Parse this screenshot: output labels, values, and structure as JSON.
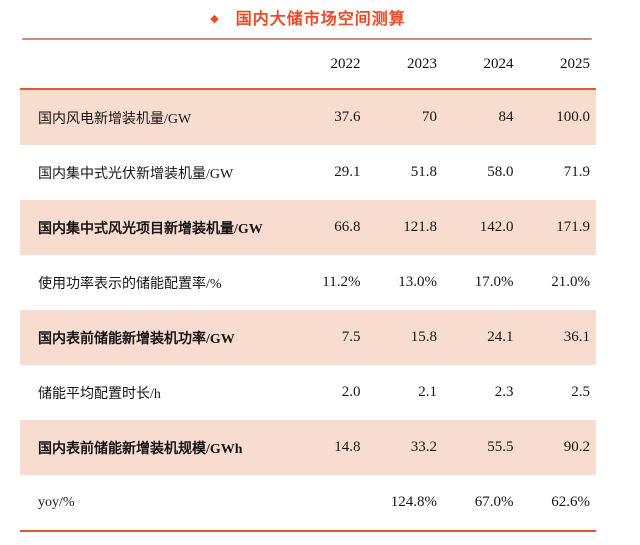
{
  "title": {
    "bullet_icon": "◆",
    "text": "国内大储市场空间测算"
  },
  "chart_data": {
    "type": "table",
    "title": "国内大储市场空间测算",
    "columns": [
      "",
      "2022",
      "2023",
      "2024",
      "2025"
    ],
    "rows": [
      {
        "label": "国内风电新增装机量/GW",
        "values": [
          "37.6",
          "70",
          "84",
          "100.0"
        ],
        "highlight": true,
        "bold": false
      },
      {
        "label": "国内集中式光伏新增装机量/GW",
        "values": [
          "29.1",
          "51.8",
          "58.0",
          "71.9"
        ],
        "highlight": false,
        "bold": false
      },
      {
        "label": "国内集中式风光项目新增装机量/GW",
        "values": [
          "66.8",
          "121.8",
          "142.0",
          "171.9"
        ],
        "highlight": true,
        "bold": true
      },
      {
        "label": "使用功率表示的储能配置率/%",
        "values": [
          "11.2%",
          "13.0%",
          "17.0%",
          "21.0%"
        ],
        "highlight": false,
        "bold": false
      },
      {
        "label": "国内表前储能新增装机功率/GW",
        "values": [
          "7.5",
          "15.8",
          "24.1",
          "36.1"
        ],
        "highlight": true,
        "bold": true
      },
      {
        "label": "储能平均配置时长/h",
        "values": [
          "2.0",
          "2.1",
          "2.3",
          "2.5"
        ],
        "highlight": false,
        "bold": false
      },
      {
        "label": "国内表前储能新增装机规模/GWh",
        "values": [
          "14.8",
          "33.2",
          "55.5",
          "90.2"
        ],
        "highlight": true,
        "bold": true
      },
      {
        "label": "yoy/%",
        "values": [
          "",
          "124.8%",
          "67.0%",
          "62.6%"
        ],
        "highlight": false,
        "bold": false
      }
    ]
  },
  "colors": {
    "title_red": "#e84b25",
    "title_rule_salmon": "#cb8c72",
    "table_rule_orange": "#e2572b",
    "row_highlight_pink": "#f9dcd0",
    "text": "#1c1c1c"
  }
}
